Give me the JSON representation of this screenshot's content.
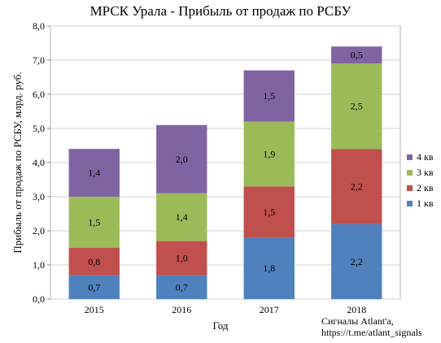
{
  "chart_data": {
    "type": "bar",
    "stacked": true,
    "title": "МРСК Урала - Прибыль от продаж по РСБУ",
    "xlabel": "Год",
    "ylabel": "Прибыль от продаж по РСБУ, млрд. руб.",
    "categories": [
      "2015",
      "2016",
      "2017",
      "2018"
    ],
    "series": [
      {
        "name": "1 кв",
        "color": "#4f81bd",
        "values": [
          0.7,
          0.7,
          1.8,
          2.2
        ],
        "labels": [
          "0,7",
          "0,7",
          "1,8",
          "2,2"
        ]
      },
      {
        "name": "2 кв",
        "color": "#c0504d",
        "values": [
          0.8,
          1.0,
          1.5,
          2.2
        ],
        "labels": [
          "0,8",
          "1,0",
          "1,5",
          "2,2"
        ]
      },
      {
        "name": "3 кв",
        "color": "#9bbb59",
        "values": [
          1.5,
          1.4,
          1.9,
          2.5
        ],
        "labels": [
          "1,5",
          "1,4",
          "1,9",
          "2,5"
        ]
      },
      {
        "name": "4 кв",
        "color": "#8064a2",
        "values": [
          1.4,
          2.0,
          1.5,
          0.5
        ],
        "labels": [
          "1,4",
          "2,0",
          "1,5",
          "0,5"
        ]
      }
    ],
    "ylim": [
      0,
      8
    ],
    "yticks": [
      "0,0",
      "1,0",
      "2,0",
      "3,0",
      "4,0",
      "5,0",
      "6,0",
      "7,0",
      "8,0"
    ],
    "grid": true,
    "legend_position": "right"
  },
  "credit": {
    "line1": "Сигналы Atlant'a,",
    "line2": "https://t.me/atlant_signals"
  }
}
